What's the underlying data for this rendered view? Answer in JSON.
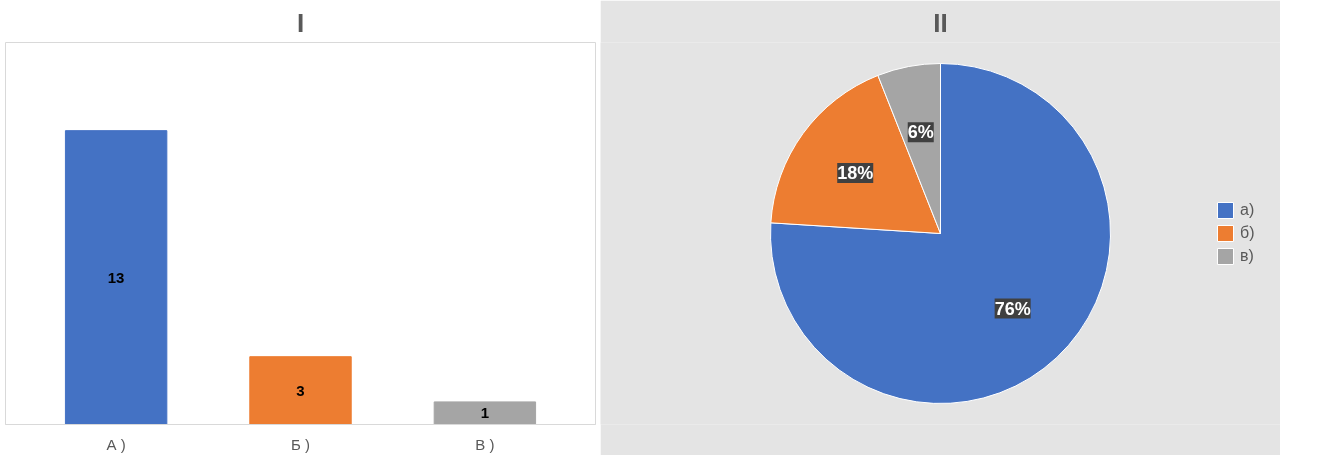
{
  "chart_data": [
    {
      "type": "bar",
      "title": "I",
      "categories": [
        "А )",
        "Б )",
        "В )"
      ],
      "values": [
        13,
        3,
        1
      ],
      "colors": [
        "#4472c4",
        "#ed7d31",
        "#a5a5a5"
      ],
      "data_labels": true
    },
    {
      "type": "pie",
      "title": "II",
      "categories": [
        "а)",
        "б)",
        "в)"
      ],
      "values": [
        76,
        18,
        6
      ],
      "colors": [
        "#4472c4",
        "#ed7d31",
        "#a5a5a5"
      ],
      "value_labels": [
        "76%",
        "18%",
        "6%"
      ],
      "legend": "right"
    }
  ]
}
